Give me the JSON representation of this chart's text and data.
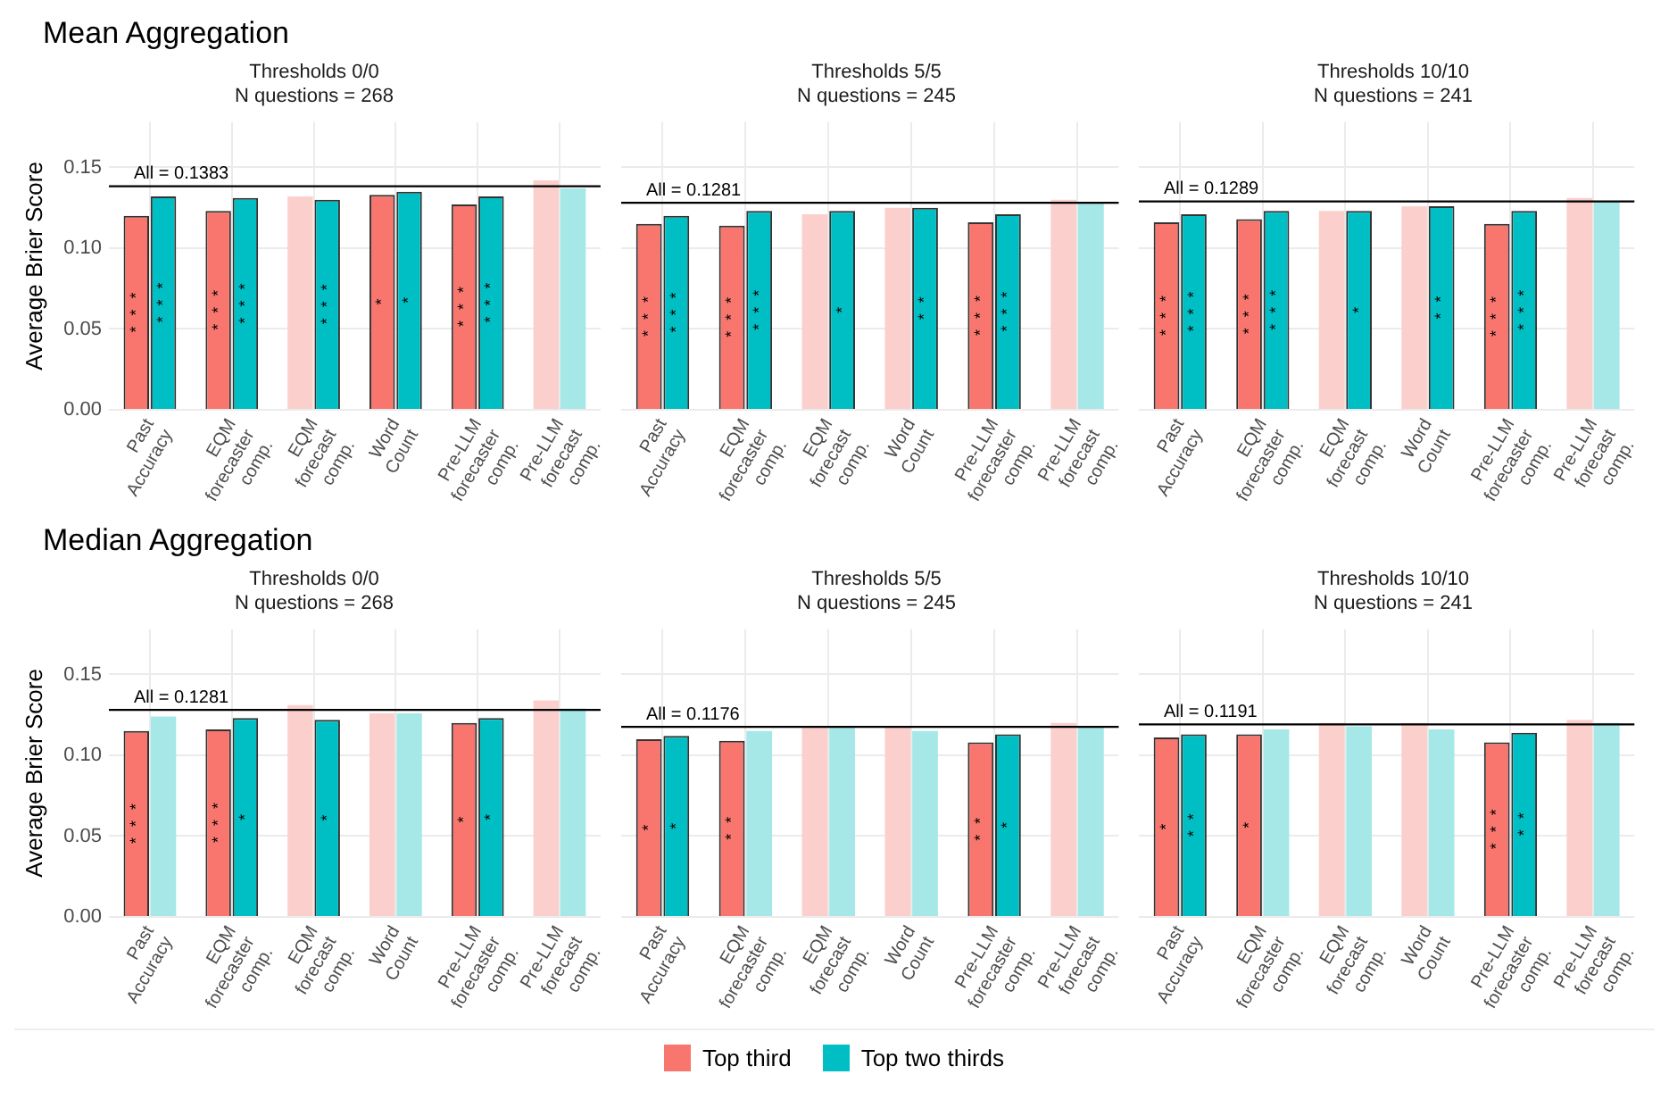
{
  "chart_data": [
    {
      "type": "bar",
      "title": "Mean Aggregation",
      "subtitle": "Thresholds 0/0",
      "annotations": [
        "N questions = 268"
      ],
      "ylabel": "Average Brier Score",
      "categories": [
        "Past Accuracy",
        "EQM forecaster comp.",
        "EQM forecast comp.",
        "Word Count",
        "Pre-LLM forecaster comp.",
        "Pre-LLM forecast comp."
      ],
      "ylim": [
        0,
        0.178
      ],
      "yticks": [
        {
          "value": 0,
          "label": "0.00"
        },
        {
          "value": 0.05,
          "label": "0.05"
        },
        {
          "value": 0.1,
          "label": "0.10"
        },
        {
          "value": 0.15,
          "label": "0.15"
        }
      ],
      "grid": true,
      "legend": "bottom",
      "ref_lines": [
        {
          "axis": "y",
          "value": 0.1383,
          "label": "All = 0.1383"
        }
      ],
      "series": [
        {
          "name": "Top third",
          "color": "#f8766d",
          "colors": [
            "#f8766d",
            "#f8766d",
            "#fbd0cc",
            "#f8766d",
            "#f8766d",
            "#fbd0cc"
          ],
          "values": [
            0.12,
            0.123,
            0.132,
            0.133,
            0.127,
            0.142
          ],
          "value_labels": [
            "***",
            "***",
            null,
            "*",
            "***",
            null
          ]
        },
        {
          "name": "Top two thirds",
          "color": "#00bfc4",
          "colors": [
            "#00bfc4",
            "#00bfc4",
            "#00bfc4",
            "#00bfc4",
            "#00bfc4",
            "#a6e8e8"
          ],
          "values": [
            0.132,
            0.131,
            0.13,
            0.135,
            0.132,
            0.137
          ],
          "value_labels": [
            "***",
            "***",
            "***",
            "*",
            "***",
            null
          ]
        }
      ]
    },
    {
      "type": "bar",
      "subtitle": "Thresholds 5/5",
      "annotations": [
        "N questions = 245"
      ],
      "categories": [
        "Past Accuracy",
        "EQM forecaster comp.",
        "EQM forecast comp.",
        "Word Count",
        "Pre-LLM forecaster comp.",
        "Pre-LLM forecast comp."
      ],
      "ylim": [
        0,
        0.178
      ],
      "yticks": [
        {
          "value": 0,
          "label": null
        },
        {
          "value": 0.05,
          "label": null
        },
        {
          "value": 0.1,
          "label": null
        },
        {
          "value": 0.15,
          "label": null
        }
      ],
      "tick_labels": "x",
      "grid": true,
      "ref_lines": [
        {
          "axis": "y",
          "value": 0.1281,
          "label": "All = 0.1281"
        }
      ],
      "series": [
        {
          "colors": [
            "#f8766d",
            "#f8766d",
            "#fbd0cc",
            "#fbd0cc",
            "#f8766d",
            "#fbd0cc"
          ],
          "values": [
            0.115,
            0.114,
            0.121,
            0.125,
            0.116,
            0.13
          ],
          "value_labels": [
            "***",
            "***",
            null,
            null,
            "***",
            null
          ]
        },
        {
          "colors": [
            "#00bfc4",
            "#00bfc4",
            "#00bfc4",
            "#00bfc4",
            "#00bfc4",
            "#a6e8e8"
          ],
          "values": [
            0.12,
            0.123,
            0.123,
            0.125,
            0.121,
            0.128
          ],
          "value_labels": [
            "***",
            "***",
            "*",
            "**",
            "***",
            null
          ]
        }
      ]
    },
    {
      "type": "bar",
      "subtitle": "Thresholds 10/10",
      "annotations": [
        "N questions = 241"
      ],
      "categories": [
        "Past Accuracy",
        "EQM forecaster comp.",
        "EQM forecast comp.",
        "Word Count",
        "Pre-LLM forecaster comp.",
        "Pre-LLM forecast comp."
      ],
      "ylim": [
        0,
        0.178
      ],
      "yticks": [
        {
          "value": 0,
          "label": null
        },
        {
          "value": 0.05,
          "label": null
        },
        {
          "value": 0.1,
          "label": null
        },
        {
          "value": 0.15,
          "label": null
        }
      ],
      "tick_labels": "x",
      "grid": true,
      "ref_lines": [
        {
          "axis": "y",
          "value": 0.1289,
          "label": "All = 0.1289"
        }
      ],
      "series": [
        {
          "colors": [
            "#f8766d",
            "#f8766d",
            "#fbd0cc",
            "#fbd0cc",
            "#f8766d",
            "#fbd0cc"
          ],
          "values": [
            0.116,
            0.118,
            0.123,
            0.126,
            0.115,
            0.131
          ],
          "value_labels": [
            "***",
            "***",
            null,
            null,
            "***",
            null
          ]
        },
        {
          "colors": [
            "#00bfc4",
            "#00bfc4",
            "#00bfc4",
            "#00bfc4",
            "#00bfc4",
            "#a6e8e8"
          ],
          "values": [
            0.121,
            0.123,
            0.123,
            0.126,
            0.123,
            0.129
          ],
          "value_labels": [
            "***",
            "***",
            "*",
            "**",
            "***",
            null
          ]
        }
      ]
    },
    {
      "type": "bar",
      "title": "Median Aggregation",
      "subtitle": "Thresholds 0/0",
      "annotations": [
        "N questions = 268"
      ],
      "ylabel": "Average Brier Score",
      "categories": [
        "Past Accuracy",
        "EQM forecaster comp.",
        "EQM forecast comp.",
        "Word Count",
        "Pre-LLM forecaster comp.",
        "Pre-LLM forecast comp."
      ],
      "ylim": [
        0,
        0.178
      ],
      "yticks": [
        {
          "value": 0,
          "label": "0.00"
        },
        {
          "value": 0.05,
          "label": "0.05"
        },
        {
          "value": 0.1,
          "label": "0.10"
        },
        {
          "value": 0.15,
          "label": "0.15"
        }
      ],
      "grid": true,
      "ref_lines": [
        {
          "axis": "y",
          "value": 0.1281,
          "label": "All = 0.1281"
        }
      ],
      "series": [
        {
          "colors": [
            "#f8766d",
            "#f8766d",
            "#fbd0cc",
            "#fbd0cc",
            "#f8766d",
            "#fbd0cc"
          ],
          "values": [
            0.115,
            0.116,
            0.131,
            0.126,
            0.12,
            0.134
          ],
          "value_labels": [
            "***",
            "***",
            null,
            null,
            "*",
            null
          ]
        },
        {
          "colors": [
            "#a6e8e8",
            "#00bfc4",
            "#00bfc4",
            "#a6e8e8",
            "#00bfc4",
            "#a6e8e8"
          ],
          "values": [
            0.124,
            0.123,
            0.122,
            0.126,
            0.123,
            0.129
          ],
          "value_labels": [
            null,
            "*",
            "*",
            null,
            "*",
            null
          ]
        }
      ]
    },
    {
      "type": "bar",
      "subtitle": "Thresholds 5/5",
      "annotations": [
        "N questions = 245"
      ],
      "categories": [
        "Past Accuracy",
        "EQM forecaster comp.",
        "EQM forecast comp.",
        "Word Count",
        "Pre-LLM forecaster comp.",
        "Pre-LLM forecast comp."
      ],
      "ylim": [
        0,
        0.178
      ],
      "yticks": [
        {
          "value": 0,
          "label": null
        },
        {
          "value": 0.05,
          "label": null
        },
        {
          "value": 0.1,
          "label": null
        },
        {
          "value": 0.15,
          "label": null
        }
      ],
      "tick_labels": "x",
      "grid": true,
      "ref_lines": [
        {
          "axis": "y",
          "value": 0.1176,
          "label": "All = 0.1176"
        }
      ],
      "series": [
        {
          "colors": [
            "#f8766d",
            "#f8766d",
            "#fbd0cc",
            "#fbd0cc",
            "#f8766d",
            "#fbd0cc"
          ],
          "values": [
            0.11,
            0.109,
            0.118,
            0.118,
            0.108,
            0.12
          ],
          "value_labels": [
            "*",
            "**",
            null,
            null,
            "**",
            null
          ]
        },
        {
          "colors": [
            "#00bfc4",
            "#a6e8e8",
            "#a6e8e8",
            "#a6e8e8",
            "#00bfc4",
            "#a6e8e8"
          ],
          "values": [
            0.112,
            0.115,
            0.118,
            0.115,
            0.113,
            0.118
          ],
          "value_labels": [
            "*",
            null,
            null,
            null,
            "*",
            null
          ]
        }
      ]
    },
    {
      "type": "bar",
      "subtitle": "Thresholds 10/10",
      "annotations": [
        "N questions = 241"
      ],
      "categories": [
        "Past Accuracy",
        "EQM forecaster comp.",
        "EQM forecast comp.",
        "Word Count",
        "Pre-LLM forecaster comp.",
        "Pre-LLM forecast comp."
      ],
      "ylim": [
        0,
        0.178
      ],
      "yticks": [
        {
          "value": 0,
          "label": null
        },
        {
          "value": 0.05,
          "label": null
        },
        {
          "value": 0.1,
          "label": null
        },
        {
          "value": 0.15,
          "label": null
        }
      ],
      "tick_labels": "x",
      "grid": true,
      "ref_lines": [
        {
          "axis": "y",
          "value": 0.1191,
          "label": "All = 0.1191"
        }
      ],
      "series": [
        {
          "colors": [
            "#f8766d",
            "#f8766d",
            "#fbd0cc",
            "#fbd0cc",
            "#f8766d",
            "#fbd0cc"
          ],
          "values": [
            0.111,
            0.113,
            0.12,
            0.12,
            0.108,
            0.122
          ],
          "value_labels": [
            "*",
            "*",
            null,
            null,
            "***",
            null
          ]
        },
        {
          "colors": [
            "#00bfc4",
            "#a6e8e8",
            "#a6e8e8",
            "#a6e8e8",
            "#00bfc4",
            "#a6e8e8"
          ],
          "values": [
            0.113,
            0.116,
            0.118,
            0.116,
            0.114,
            0.12
          ],
          "value_labels": [
            "**",
            null,
            null,
            null,
            "**",
            null
          ]
        }
      ]
    }
  ]
}
